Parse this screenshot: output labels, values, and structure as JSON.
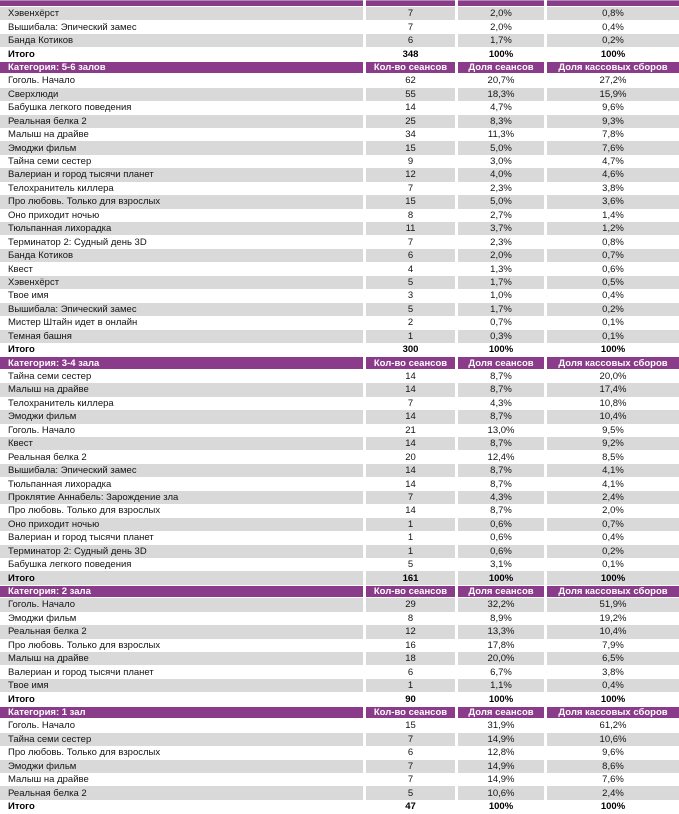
{
  "colors": {
    "header_bg": "#8A3B8A",
    "row_stripe_bg": "#D9D9D9",
    "header_text": "#FFFFFF"
  },
  "table": {
    "columns": [
      "Кол-во сеансов",
      "Доля сеансов",
      "Доля кассовых сборов"
    ],
    "sections": [
      {
        "category": "",
        "rows": [
          {
            "name": "Хэвенхёрст",
            "sessions": "7",
            "sessions_share": "2,0%",
            "box_office_share": "0,8%"
          },
          {
            "name": "Вышибала: Эпический замес",
            "sessions": "7",
            "sessions_share": "2,0%",
            "box_office_share": "0,4%"
          },
          {
            "name": "Банда Котиков",
            "sessions": "6",
            "sessions_share": "1,7%",
            "box_office_share": "0,2%"
          },
          {
            "name": "Итого",
            "sessions": "348",
            "sessions_share": "100%",
            "box_office_share": "100%",
            "total": true
          }
        ]
      },
      {
        "category": "Категория: 5-6 залов",
        "rows": [
          {
            "name": "Гоголь. Начало",
            "sessions": "62",
            "sessions_share": "20,7%",
            "box_office_share": "27,2%"
          },
          {
            "name": "Сверхлюди",
            "sessions": "55",
            "sessions_share": "18,3%",
            "box_office_share": "15,9%"
          },
          {
            "name": "Бабушка легкого поведения",
            "sessions": "14",
            "sessions_share": "4,7%",
            "box_office_share": "9,6%"
          },
          {
            "name": "Реальная белка 2",
            "sessions": "25",
            "sessions_share": "8,3%",
            "box_office_share": "9,3%"
          },
          {
            "name": "Малыш на драйве",
            "sessions": "34",
            "sessions_share": "11,3%",
            "box_office_share": "7,8%"
          },
          {
            "name": "Эмоджи фильм",
            "sessions": "15",
            "sessions_share": "5,0%",
            "box_office_share": "7,6%"
          },
          {
            "name": "Тайна семи сестер",
            "sessions": "9",
            "sessions_share": "3,0%",
            "box_office_share": "4,7%"
          },
          {
            "name": "Валериан и город тысячи планет",
            "sessions": "12",
            "sessions_share": "4,0%",
            "box_office_share": "4,6%"
          },
          {
            "name": "Телохранитель киллера",
            "sessions": "7",
            "sessions_share": "2,3%",
            "box_office_share": "3,8%"
          },
          {
            "name": "Про любовь. Только для взрослых",
            "sessions": "15",
            "sessions_share": "5,0%",
            "box_office_share": "3,6%"
          },
          {
            "name": "Оно приходит ночью",
            "sessions": "8",
            "sessions_share": "2,7%",
            "box_office_share": "1,4%"
          },
          {
            "name": "Тюльпанная лихорадка",
            "sessions": "11",
            "sessions_share": "3,7%",
            "box_office_share": "1,2%"
          },
          {
            "name": "Терминатор 2: Судный день 3D",
            "sessions": "7",
            "sessions_share": "2,3%",
            "box_office_share": "0,8%"
          },
          {
            "name": "Банда Котиков",
            "sessions": "6",
            "sessions_share": "2,0%",
            "box_office_share": "0,7%"
          },
          {
            "name": "Квест",
            "sessions": "4",
            "sessions_share": "1,3%",
            "box_office_share": "0,6%"
          },
          {
            "name": "Хэвенхёрст",
            "sessions": "5",
            "sessions_share": "1,7%",
            "box_office_share": "0,5%"
          },
          {
            "name": "Твое имя",
            "sessions": "3",
            "sessions_share": "1,0%",
            "box_office_share": "0,4%"
          },
          {
            "name": "Вышибала: Эпический замес",
            "sessions": "5",
            "sessions_share": "1,7%",
            "box_office_share": "0,2%"
          },
          {
            "name": "Мистер Штайн идет в онлайн",
            "sessions": "2",
            "sessions_share": "0,7%",
            "box_office_share": "0,1%"
          },
          {
            "name": "Темная башня",
            "sessions": "1",
            "sessions_share": "0,3%",
            "box_office_share": "0,1%"
          },
          {
            "name": "Итого",
            "sessions": "300",
            "sessions_share": "100%",
            "box_office_share": "100%",
            "total": true
          }
        ]
      },
      {
        "category": "Категория: 3-4 зала",
        "rows": [
          {
            "name": "Тайна семи сестер",
            "sessions": "14",
            "sessions_share": "8,7%",
            "box_office_share": "20,0%"
          },
          {
            "name": "Малыш на драйве",
            "sessions": "14",
            "sessions_share": "8,7%",
            "box_office_share": "17,4%"
          },
          {
            "name": "Телохранитель киллера",
            "sessions": "7",
            "sessions_share": "4,3%",
            "box_office_share": "10,8%"
          },
          {
            "name": "Эмоджи фильм",
            "sessions": "14",
            "sessions_share": "8,7%",
            "box_office_share": "10,4%"
          },
          {
            "name": "Гоголь. Начало",
            "sessions": "21",
            "sessions_share": "13,0%",
            "box_office_share": "9,5%"
          },
          {
            "name": "Квест",
            "sessions": "14",
            "sessions_share": "8,7%",
            "box_office_share": "9,2%"
          },
          {
            "name": "Реальная белка 2",
            "sessions": "20",
            "sessions_share": "12,4%",
            "box_office_share": "8,5%"
          },
          {
            "name": "Вышибала: Эпический замес",
            "sessions": "14",
            "sessions_share": "8,7%",
            "box_office_share": "4,1%"
          },
          {
            "name": "Тюльпанная лихорадка",
            "sessions": "14",
            "sessions_share": "8,7%",
            "box_office_share": "4,1%"
          },
          {
            "name": "Проклятие Аннабель: Зарождение зла",
            "sessions": "7",
            "sessions_share": "4,3%",
            "box_office_share": "2,4%"
          },
          {
            "name": "Про любовь. Только для взрослых",
            "sessions": "14",
            "sessions_share": "8,7%",
            "box_office_share": "2,0%"
          },
          {
            "name": "Оно приходит ночью",
            "sessions": "1",
            "sessions_share": "0,6%",
            "box_office_share": "0,7%"
          },
          {
            "name": "Валериан и город тысячи планет",
            "sessions": "1",
            "sessions_share": "0,6%",
            "box_office_share": "0,4%"
          },
          {
            "name": "Терминатор 2: Судный день 3D",
            "sessions": "1",
            "sessions_share": "0,6%",
            "box_office_share": "0,2%"
          },
          {
            "name": "Бабушка легкого поведения",
            "sessions": "5",
            "sessions_share": "3,1%",
            "box_office_share": "0,1%"
          },
          {
            "name": "Итого",
            "sessions": "161",
            "sessions_share": "100%",
            "box_office_share": "100%",
            "total": true
          }
        ]
      },
      {
        "category": "Категория: 2 зала",
        "rows": [
          {
            "name": "Гоголь. Начало",
            "sessions": "29",
            "sessions_share": "32,2%",
            "box_office_share": "51,9%"
          },
          {
            "name": "Эмоджи фильм",
            "sessions": "8",
            "sessions_share": "8,9%",
            "box_office_share": "19,2%"
          },
          {
            "name": "Реальная белка 2",
            "sessions": "12",
            "sessions_share": "13,3%",
            "box_office_share": "10,4%"
          },
          {
            "name": "Про любовь. Только для взрослых",
            "sessions": "16",
            "sessions_share": "17,8%",
            "box_office_share": "7,9%"
          },
          {
            "name": "Малыш на драйве",
            "sessions": "18",
            "sessions_share": "20,0%",
            "box_office_share": "6,5%"
          },
          {
            "name": "Валериан и город тысячи планет",
            "sessions": "6",
            "sessions_share": "6,7%",
            "box_office_share": "3,8%"
          },
          {
            "name": "Твое имя",
            "sessions": "1",
            "sessions_share": "1,1%",
            "box_office_share": "0,4%"
          },
          {
            "name": "Итого",
            "sessions": "90",
            "sessions_share": "100%",
            "box_office_share": "100%",
            "total": true
          }
        ]
      },
      {
        "category": "Категория: 1 зал",
        "rows": [
          {
            "name": "Гоголь. Начало",
            "sessions": "15",
            "sessions_share": "31,9%",
            "box_office_share": "61,2%"
          },
          {
            "name": "Тайна семи сестер",
            "sessions": "7",
            "sessions_share": "14,9%",
            "box_office_share": "10,6%"
          },
          {
            "name": "Про любовь. Только для взрослых",
            "sessions": "6",
            "sessions_share": "12,8%",
            "box_office_share": "9,6%"
          },
          {
            "name": "Эмоджи фильм",
            "sessions": "7",
            "sessions_share": "14,9%",
            "box_office_share": "8,6%"
          },
          {
            "name": "Малыш на драйве",
            "sessions": "7",
            "sessions_share": "14,9%",
            "box_office_share": "7,6%"
          },
          {
            "name": "Реальная белка 2",
            "sessions": "5",
            "sessions_share": "10,6%",
            "box_office_share": "2,4%"
          },
          {
            "name": "Итого",
            "sessions": "47",
            "sessions_share": "100%",
            "box_office_share": "100%",
            "total": true
          }
        ]
      }
    ]
  }
}
